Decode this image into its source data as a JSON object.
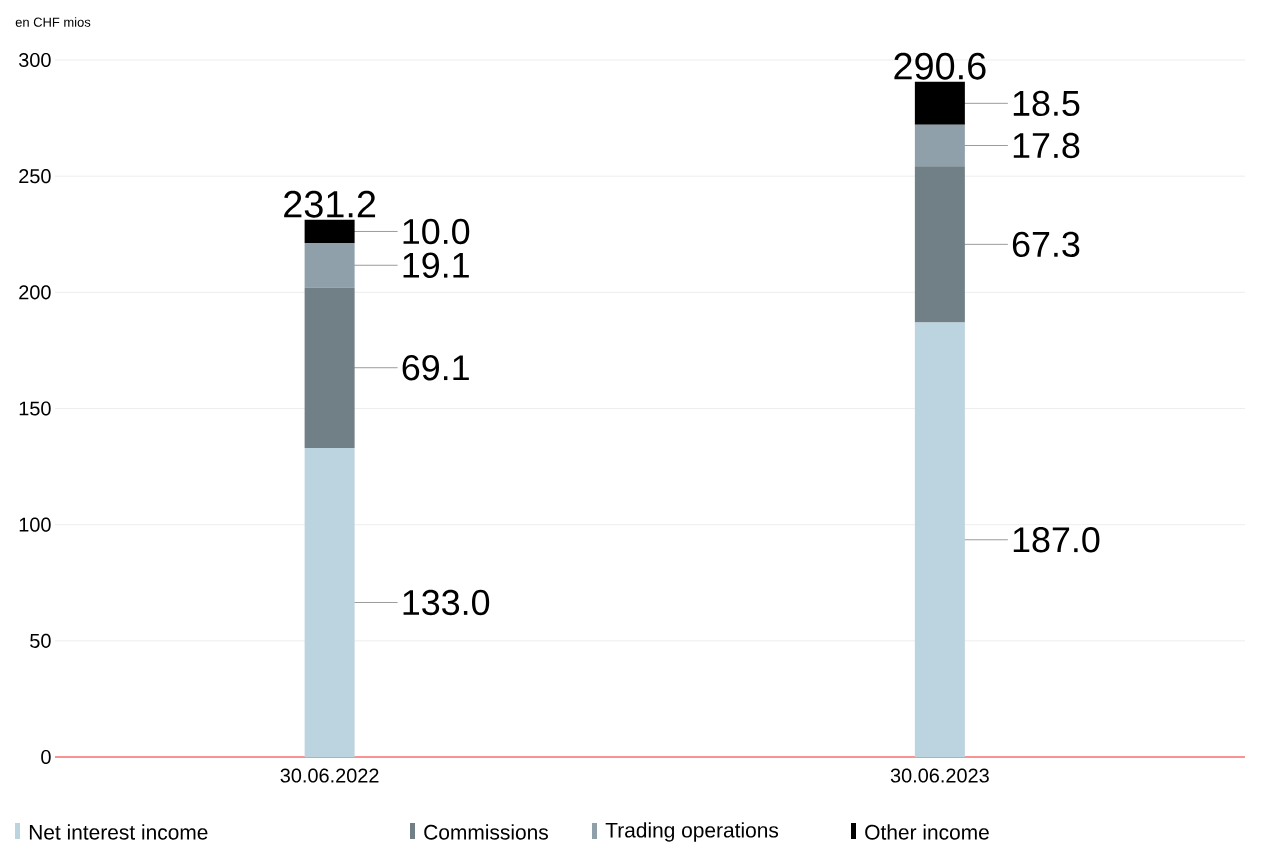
{
  "chart_data": {
    "type": "bar",
    "stacked": true,
    "ylabel": "en CHF mios",
    "categories": [
      "30.06.2022",
      "30.06.2023"
    ],
    "series": [
      {
        "name": "Net interest income",
        "color": "#bcd4df",
        "values": [
          133.0,
          187.0
        ],
        "value_labels": [
          "133.0",
          "187.0"
        ]
      },
      {
        "name": "Commissions",
        "color": "#717f87",
        "values": [
          69.1,
          67.3
        ],
        "value_labels": [
          "69.1",
          "67.3"
        ]
      },
      {
        "name": "Trading operations",
        "color": "#8fa0aa",
        "values": [
          19.1,
          17.8
        ],
        "value_labels": [
          "19.1",
          "17.8"
        ]
      },
      {
        "name": "Other income",
        "color": "#000000",
        "values": [
          10.0,
          18.5
        ],
        "value_labels": [
          "10.0",
          "18.5"
        ]
      }
    ],
    "totals": [
      "231.2",
      "290.6"
    ],
    "ylim": [
      0,
      300
    ],
    "yticks": [
      0,
      50,
      100,
      150,
      200,
      250,
      300
    ],
    "grid": "y",
    "legend": "bottom"
  }
}
